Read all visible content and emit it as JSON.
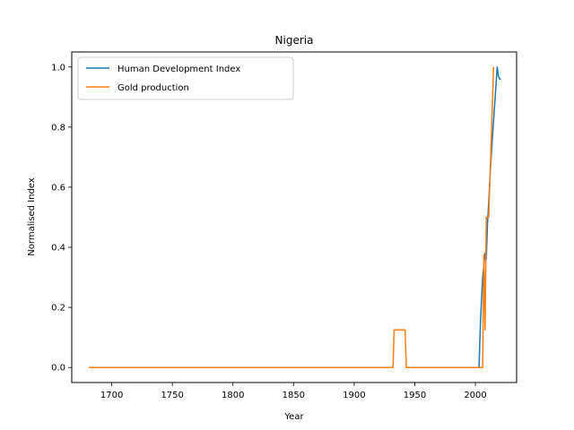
{
  "chart_data": {
    "type": "line",
    "title": "Nigeria",
    "xlabel": "Year",
    "ylabel": "Normalised Index",
    "xlim": [
      1667,
      2034
    ],
    "ylim": [
      -0.05,
      1.05
    ],
    "xticks": [
      1700,
      1750,
      1800,
      1850,
      1900,
      1950,
      2000
    ],
    "yticks": [
      0.0,
      0.2,
      0.4,
      0.6,
      0.8,
      1.0
    ],
    "xtick_labels": [
      "1700",
      "1750",
      "1800",
      "1850",
      "1900",
      "1950",
      "2000"
    ],
    "ytick_labels": [
      "0.0",
      "0.2",
      "0.4",
      "0.6",
      "0.8",
      "1.0"
    ],
    "grid": false,
    "legend_position": "top-left",
    "series": [
      {
        "name": "Human Development Index",
        "color": "#1f77b4",
        "x": [
          2003,
          2004,
          2005,
          2006,
          2007,
          2008,
          2009,
          2010,
          2011,
          2012,
          2013,
          2014,
          2015,
          2016,
          2017,
          2018,
          2019,
          2020,
          2021
        ],
        "y": [
          0.0,
          0.13,
          0.22,
          0.3,
          0.34,
          0.38,
          0.36,
          0.48,
          0.55,
          0.63,
          0.7,
          0.76,
          0.82,
          0.88,
          0.94,
          1.0,
          0.97,
          0.96,
          0.96
        ]
      },
      {
        "name": "Gold production",
        "color": "#ff7f0e",
        "x": [
          1681,
          1932,
          1933,
          1934,
          1942,
          1943,
          1944,
          2006,
          2007,
          2008,
          2009,
          2010,
          2011,
          2012,
          2014,
          2015
        ],
        "y": [
          0.0,
          0.0,
          0.125,
          0.125,
          0.125,
          0.0,
          0.0,
          0.0,
          0.375,
          0.125,
          0.5,
          0.5,
          0.5,
          0.625,
          0.875,
          1.0
        ]
      }
    ]
  }
}
